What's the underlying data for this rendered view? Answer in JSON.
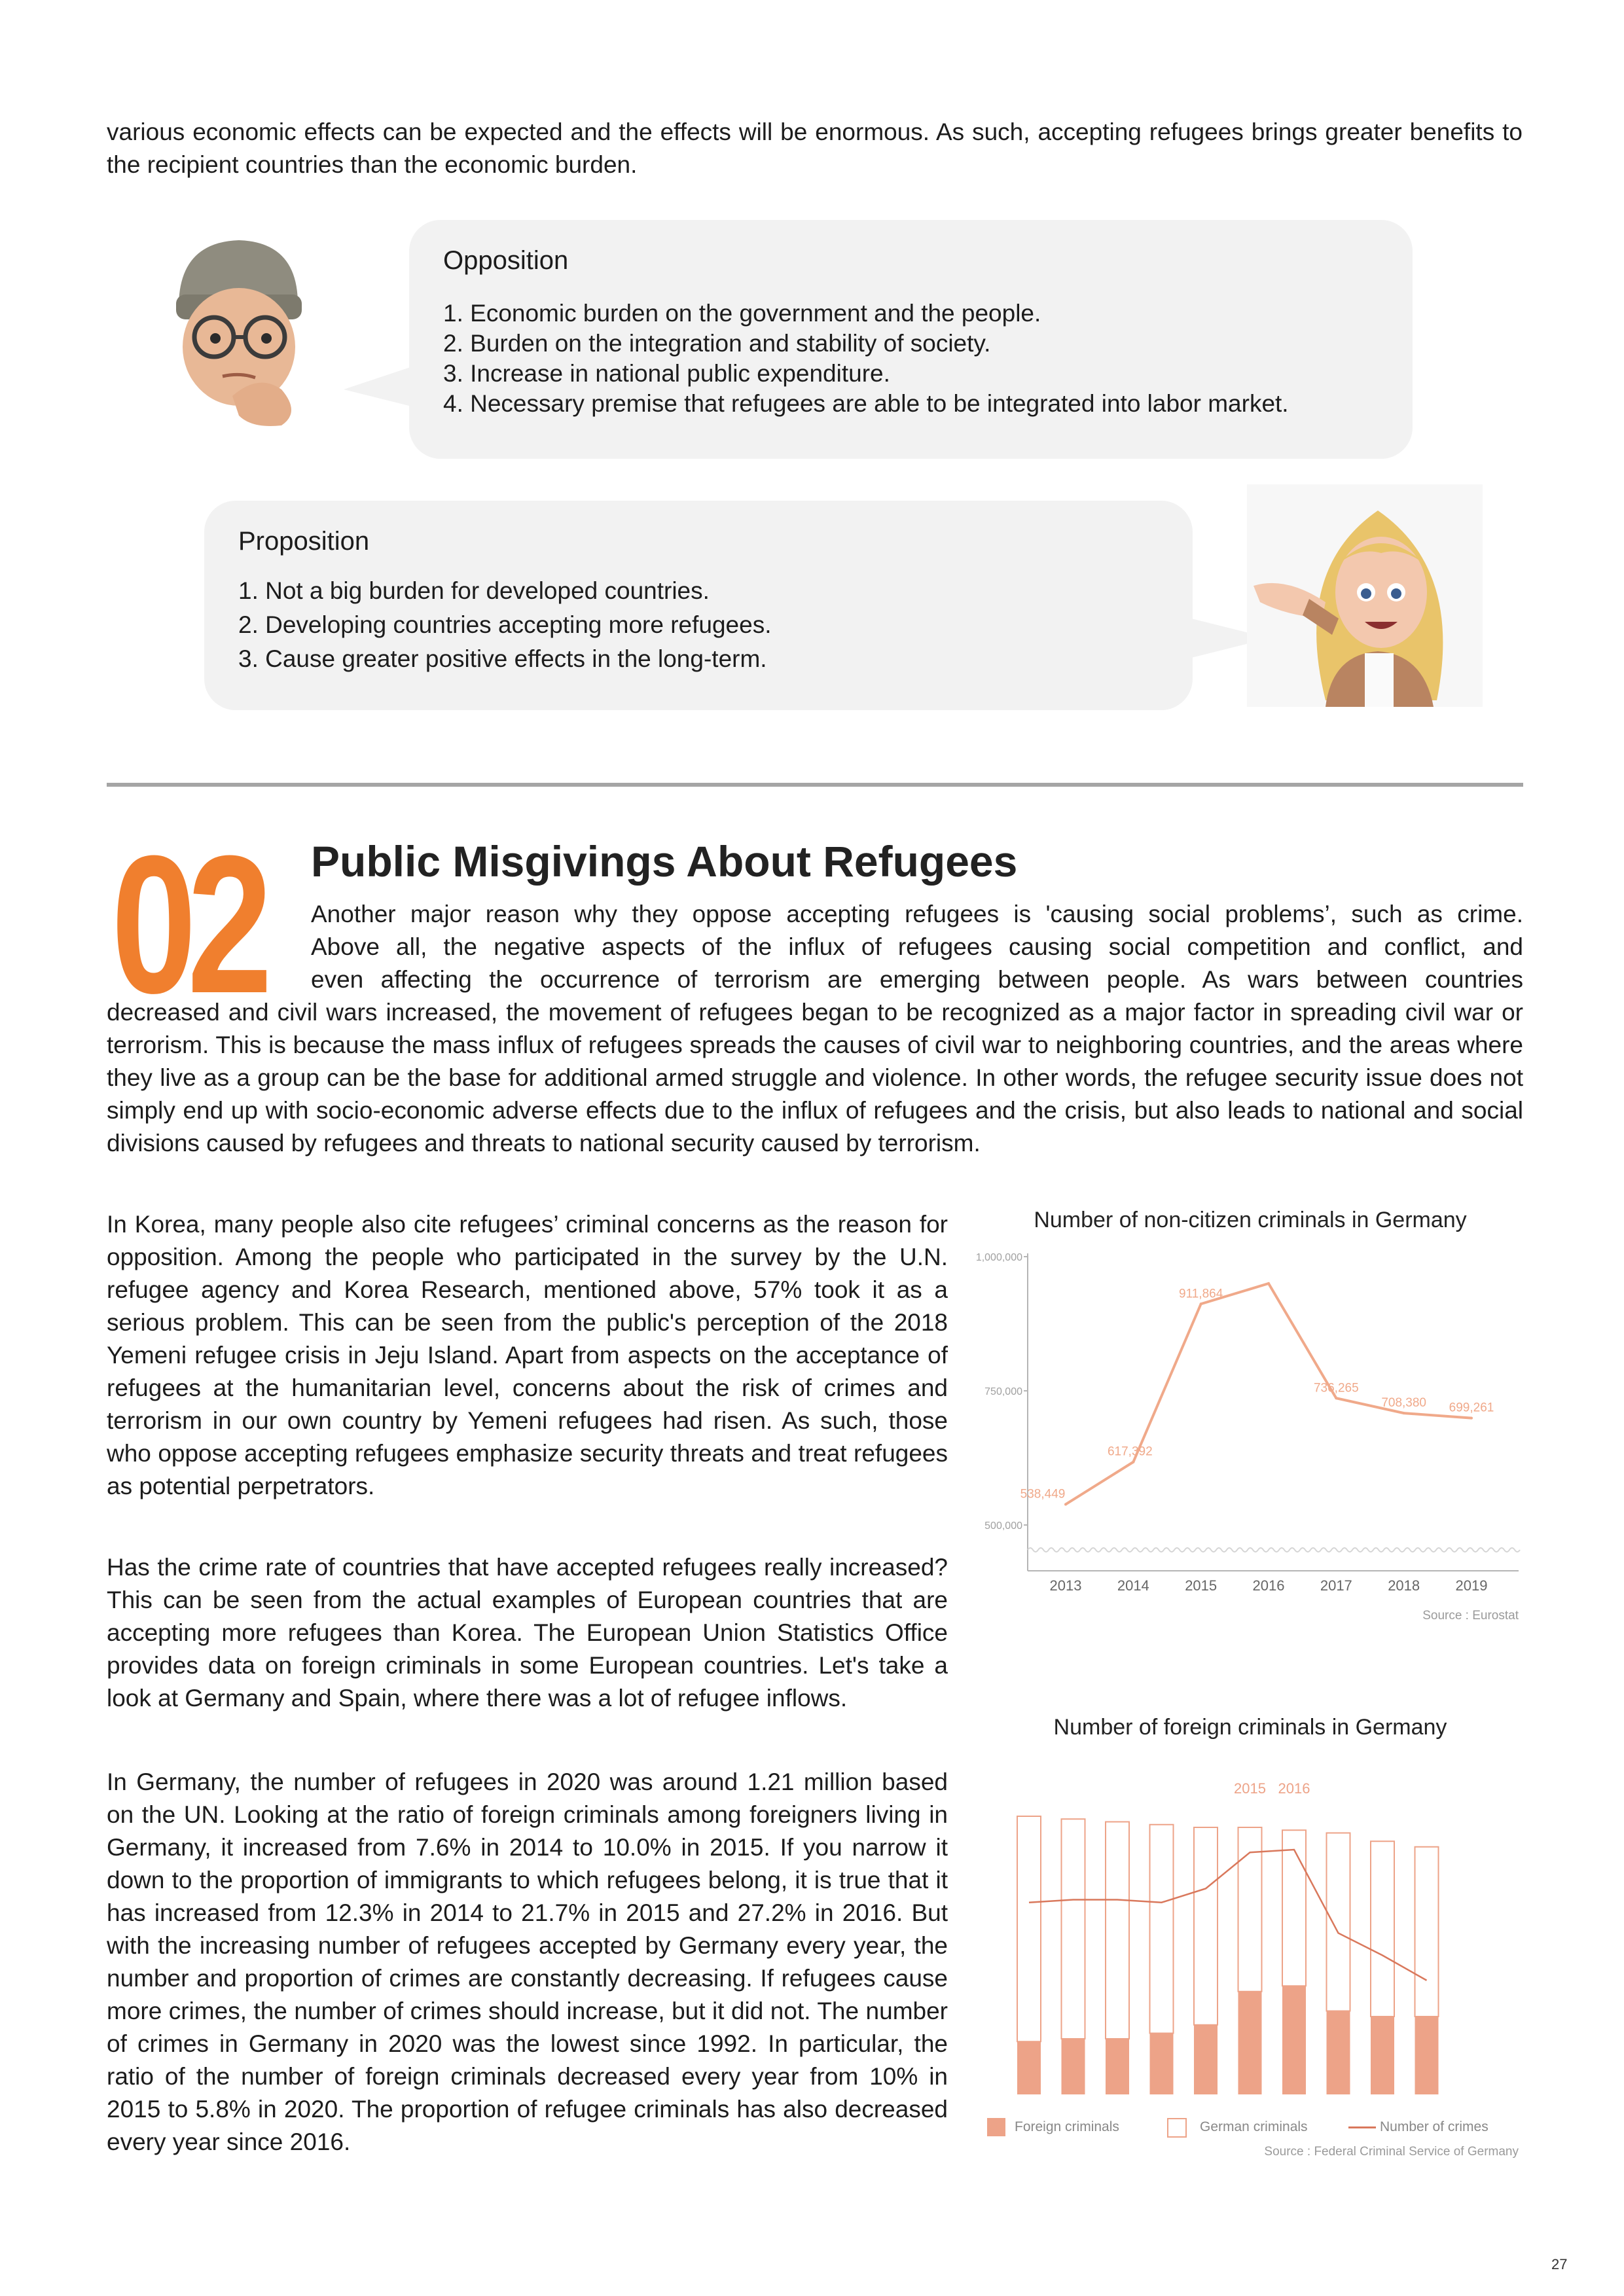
{
  "intro_text": "various economic effects can be expected and the effects will be enormous. As such, accepting refugees brings greater benefits to the recipient countries than the economic burden.",
  "opposition": {
    "title": "Opposition",
    "items": [
      "1. Economic burden on the government and the people.",
      "2. Burden on the integration and stability of society.",
      "3. Increase in national public expenditure.",
      "4. Necessary premise that refugees are able to be integrated into labor market."
    ]
  },
  "proposition": {
    "title": "Proposition",
    "items": [
      "1. Not a big burden for developed countries.",
      "2. Developing countries accepting more refugees.",
      "3. Cause greater positive effects in the long-term."
    ]
  },
  "section": {
    "number": "02",
    "title": "Public Misgivings About Refugees",
    "lead_lines": [
      "Another major reason why they oppose accepting refugees is 'causing social problems’, such as crime.",
      "Above all, the negative aspects of the influx of refugees causing social competition and conflict, and",
      "even affecting the occurrence of terrorism are emerging between people. As wars between countries"
    ],
    "lead_rest": "decreased and civil wars increased, the movement of refugees began to be recognized as a major factor in spreading civil war or terrorism. This is because the mass influx of refugees spreads the causes of civil war to neighboring countries, and the areas where they live as a group can be the base for additional armed struggle and violence. In other words, the refugee security issue does not simply end up with socio-economic adverse effects due to the influx of refugees and the crisis, but also leads to national and social divisions caused by refugees and threats to national security caused by terrorism.",
    "para1": "In Korea, many people also cite refugees’ criminal concerns as the reason for opposition. Among the people who participated in the survey by the U.N. refugee agency and Korea Research, mentioned above, 57% took it as a serious problem. This can be seen from the public's perception of the 2018 Yemeni refugee crisis in Jeju Island. Apart from aspects on the acceptance of refugees at the humanitarian level, concerns about the risk of crimes and terrorism in our own country by Yemeni refugees had risen. As such, those who oppose accepting refugees emphasize security threats and treat refugees as potential perpetrators.",
    "para2": "Has the crime rate of countries that have accepted refugees really increased? This can be seen from the actual examples of European countries that are accepting more refugees than Korea. The European Union Statistics Office provides data on foreign criminals in some European countries. Let's take a look at Germany and Spain, where there was a lot of refugee inflows.",
    "para3": "In Germany, the number of refugees in 2020 was around 1.21 million based on the UN. Looking at the ratio of foreign criminals among foreigners living in Germany, it increased from 7.6% in 2014 to 10.0% in 2015. If you narrow it down to the proportion of immigrants to which refugees belong, it is true that it has increased from 12.3% in 2014 to 21.7% in 2015 and 27.2% in 2016. But with the increasing number of refugees accepted by Germany every year, the number and proportion of crimes are constantly decreasing. If refugees cause more crimes, the number of crimes should increase, but it did not. The number of crimes in Germany in 2020 was the lowest since 1992. In particular, the ratio of the number of foreign criminals decreased every year from 10% in 2015 to 5.8% in 2020. The proportion of refugee criminals has also decreased every year since 2016."
  },
  "chart_data": [
    {
      "type": "line",
      "title": "Number of non-citizen criminals in Germany",
      "x": [
        "2013",
        "2014",
        "2015",
        "2016",
        "2017",
        "2018",
        "2019"
      ],
      "series": [
        {
          "values": [
            538449,
            617392,
            911864,
            950000,
            736265,
            708380,
            699261
          ]
        }
      ],
      "data_labels": [
        "538,449",
        "617,392",
        "911,864",
        "",
        "736,265",
        "708,380",
        "699,261"
      ],
      "y_ticks": [
        "500,000",
        "750,000",
        "1,000,000"
      ],
      "ylim": [
        500000,
        1000000
      ],
      "source": "Source : Eurostat",
      "color": "#f0a98a"
    },
    {
      "type": "bar",
      "title": "Number of foreign criminals in Germany",
      "categories": [
        "",
        "",
        "",
        "",
        "",
        "",
        "",
        "",
        "",
        ""
      ],
      "series": [
        {
          "name": "Foreign criminals",
          "values": [
            0.19,
            0.2,
            0.2,
            0.22,
            0.25,
            0.37,
            0.39,
            0.3,
            0.28,
            0.28
          ]
        },
        {
          "name": "German criminals",
          "values": [
            0.81,
            0.79,
            0.78,
            0.75,
            0.71,
            0.59,
            0.56,
            0.64,
            0.63,
            0.61
          ]
        },
        {
          "name": "Number of crimes",
          "values": [
            0.69,
            0.7,
            0.7,
            0.69,
            0.74,
            0.87,
            0.88,
            0.58,
            0.5,
            0.41
          ]
        }
      ],
      "highlight_labels": [
        "2015",
        "2016"
      ],
      "source": "Source : Federal Criminal Service of Germany",
      "colors": {
        "foreign": "#eda388",
        "german_border": "#eda388",
        "line": "#d9785c"
      }
    }
  ],
  "page_number": "27"
}
